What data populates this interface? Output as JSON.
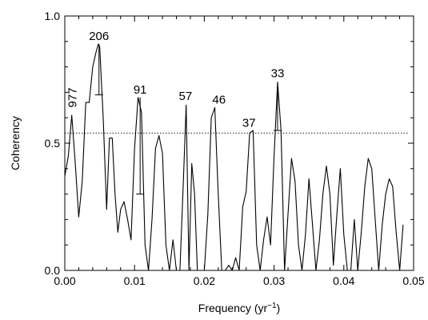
{
  "chart_data": {
    "type": "line",
    "title": "",
    "xlabel": "Frequency (yr",
    "xlabel_sup": "−1",
    "xlabel_tail": ")",
    "ylabel": "Coherency",
    "xlim": [
      0.0,
      0.05
    ],
    "ylim": [
      0.0,
      1.0
    ],
    "xticks": [
      0.0,
      0.01,
      0.02,
      0.03,
      0.04,
      0.05
    ],
    "xtick_labels": [
      "0.00",
      "0.01",
      "0.02",
      "0.03",
      "0.04",
      "0.05"
    ],
    "yticks": [
      0.0,
      0.5,
      1.0
    ],
    "ytick_labels": [
      "0.0",
      "0.5",
      "1.0"
    ],
    "grid": false,
    "threshold": 0.54,
    "series": [
      {
        "x": [
          0.0,
          0.0005,
          0.001,
          0.0015,
          0.002,
          0.0025,
          0.003,
          0.0035,
          0.004,
          0.0045,
          0.0048,
          0.005,
          0.0055,
          0.006,
          0.0064,
          0.0068,
          0.0072,
          0.0076,
          0.008,
          0.0085,
          0.009,
          0.0095,
          0.01,
          0.0105,
          0.011,
          0.0115,
          0.012,
          0.0125,
          0.013,
          0.0135,
          0.014,
          0.0145,
          0.015,
          0.0155,
          0.016,
          0.0165,
          0.017,
          0.0174,
          0.0178,
          0.0182,
          0.0186,
          0.019,
          0.0195,
          0.02,
          0.0205,
          0.021,
          0.0215,
          0.022,
          0.0225,
          0.023,
          0.0235,
          0.024,
          0.0245,
          0.025,
          0.0255,
          0.026,
          0.0265,
          0.027,
          0.0275,
          0.028,
          0.0285,
          0.029,
          0.0295,
          0.03,
          0.0305,
          0.031,
          0.0315,
          0.032,
          0.0325,
          0.033,
          0.0335,
          0.034,
          0.0345,
          0.035,
          0.0355,
          0.036,
          0.0365,
          0.037,
          0.0375,
          0.038,
          0.0385,
          0.039,
          0.0395,
          0.04,
          0.0405,
          0.041,
          0.0415,
          0.042,
          0.0425,
          0.043,
          0.0435,
          0.044,
          0.0445,
          0.045,
          0.0455,
          0.046,
          0.0465,
          0.047,
          0.0475,
          0.048,
          0.0485
        ],
        "y": [
          0.37,
          0.45,
          0.61,
          0.42,
          0.21,
          0.35,
          0.66,
          0.66,
          0.8,
          0.86,
          0.89,
          0.88,
          0.6,
          0.24,
          0.52,
          0.52,
          0.3,
          0.15,
          0.24,
          0.27,
          0.2,
          0.12,
          0.48,
          0.68,
          0.62,
          0.1,
          0.0,
          0.2,
          0.48,
          0.53,
          0.46,
          0.1,
          0.0,
          0.12,
          0.0,
          0.0,
          0.35,
          0.65,
          0.0,
          0.42,
          0.3,
          0.0,
          0.0,
          0.0,
          0.22,
          0.6,
          0.64,
          0.3,
          0.0,
          0.0,
          0.02,
          0.0,
          0.05,
          0.0,
          0.25,
          0.31,
          0.54,
          0.55,
          0.1,
          0.0,
          0.12,
          0.21,
          0.1,
          0.45,
          0.74,
          0.55,
          0.0,
          0.22,
          0.44,
          0.35,
          0.1,
          0.0,
          0.14,
          0.36,
          0.18,
          0.0,
          0.12,
          0.3,
          0.41,
          0.3,
          0.02,
          0.22,
          0.4,
          0.14,
          0.0,
          0.0,
          0.2,
          0.0,
          0.15,
          0.33,
          0.44,
          0.4,
          0.2,
          0.0,
          0.18,
          0.3,
          0.36,
          0.33,
          0.15,
          0.0,
          0.18
        ]
      }
    ],
    "error_bars": [
      {
        "x": 0.0049,
        "low": 0.69,
        "high": 0.89
      },
      {
        "x": 0.0108,
        "low": 0.3,
        "high": 0.68
      },
      {
        "x": 0.0305,
        "low": 0.55,
        "high": 0.74
      }
    ],
    "peak_labels": [
      {
        "text": "977",
        "x": 0.0011,
        "y": 0.64,
        "rotate": true
      },
      {
        "text": "206",
        "x": 0.0049,
        "y": 0.905
      },
      {
        "text": "91",
        "x": 0.0108,
        "y": 0.695
      },
      {
        "text": "57",
        "x": 0.0173,
        "y": 0.67
      },
      {
        "text": "46",
        "x": 0.0221,
        "y": 0.655
      },
      {
        "text": "37",
        "x": 0.0264,
        "y": 0.565
      },
      {
        "text": "33",
        "x": 0.0305,
        "y": 0.76
      }
    ]
  }
}
